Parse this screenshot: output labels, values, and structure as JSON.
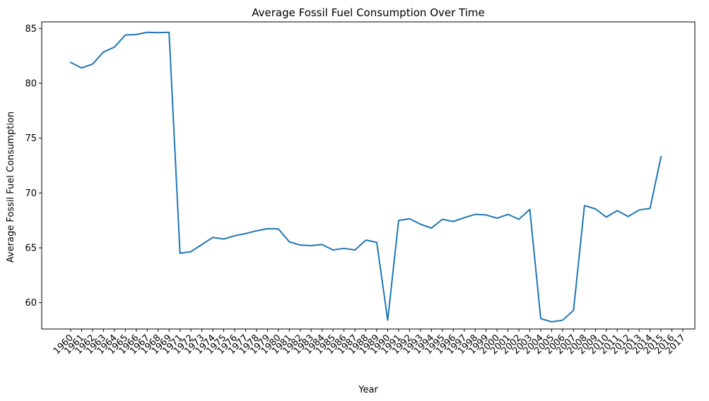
{
  "chart_data": {
    "type": "line",
    "title": "Average Fossil Fuel Consumption Over Time",
    "xlabel": "Year",
    "ylabel": "Average Fossil Fuel Consumption",
    "grid": false,
    "ylim": [
      57.6,
      85.6
    ],
    "yticks": [
      60,
      65,
      70,
      75,
      80,
      85
    ],
    "x": [
      "1960",
      "1961",
      "1962",
      "1963",
      "1964",
      "1965",
      "1966",
      "1967",
      "1968",
      "1969",
      "1971",
      "1972",
      "1973",
      "1974",
      "1975",
      "1976",
      "1977",
      "1978",
      "1979",
      "1980",
      "1981",
      "1982",
      "1983",
      "1984",
      "1985",
      "1986",
      "1987",
      "1988",
      "1989",
      "1990",
      "1991",
      "1992",
      "1993",
      "1994",
      "1995",
      "1996",
      "1997",
      "1998",
      "1999",
      "2000",
      "2001",
      "2002",
      "2003",
      "2004",
      "2005",
      "2006",
      "2007",
      "2008",
      "2009",
      "2010",
      "2011",
      "2012",
      "2013",
      "2014",
      "2015",
      "2016",
      "2017"
    ],
    "series": [
      {
        "color": "#1f77b4",
        "values": [
          81.9,
          81.4,
          81.75,
          82.85,
          83.3,
          84.4,
          84.45,
          84.65,
          84.62,
          84.65,
          64.5,
          64.65,
          65.3,
          65.95,
          65.8,
          66.1,
          66.3,
          66.55,
          66.75,
          66.72,
          65.55,
          65.25,
          65.2,
          65.3,
          64.8,
          64.95,
          64.8,
          65.7,
          65.5,
          58.4,
          67.5,
          67.65,
          67.15,
          66.8,
          67.6,
          67.4,
          67.75,
          68.05,
          68.0,
          67.7,
          68.05,
          67.6,
          68.5,
          58.55,
          58.25,
          58.4,
          59.3,
          68.85,
          68.55,
          67.8,
          68.4,
          67.85,
          68.45,
          68.6,
          73.3,
          null,
          null
        ]
      }
    ]
  }
}
